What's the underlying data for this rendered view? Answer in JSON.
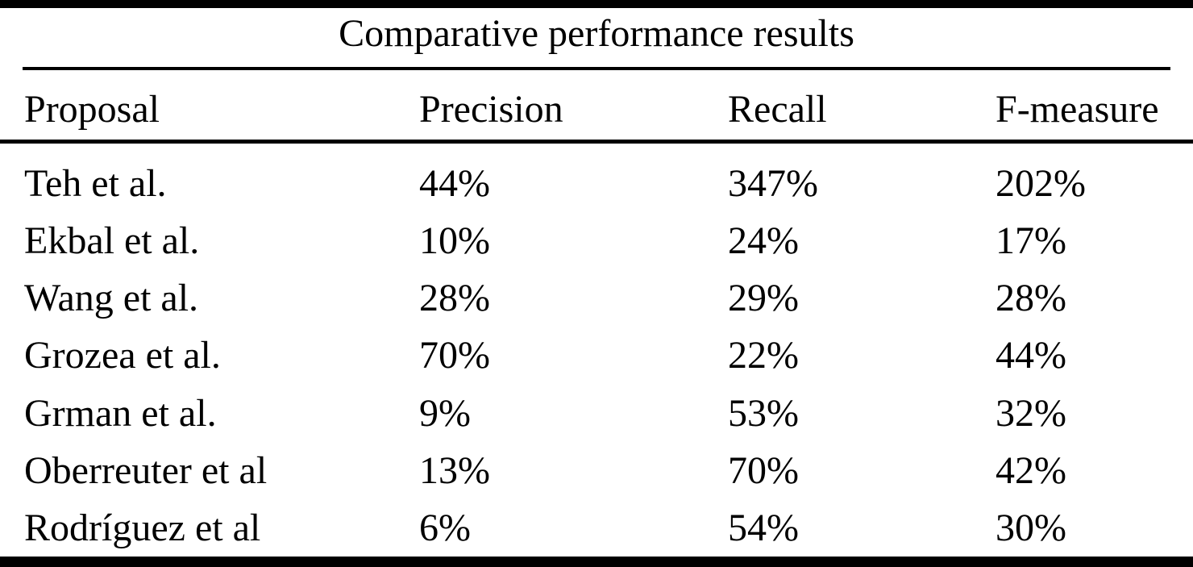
{
  "table": {
    "title": "Comparative performance results",
    "columns": [
      "Proposal",
      "Precision",
      "Recall",
      "F-measure"
    ],
    "rows": [
      {
        "proposal": "Teh et al.",
        "precision": "44%",
        "recall": "347%",
        "f_measure": "202%"
      },
      {
        "proposal": "Ekbal et al.",
        "precision": "10%",
        "recall": "24%",
        "f_measure": "17%"
      },
      {
        "proposal": "Wang et al.",
        "precision": "28%",
        "recall": "29%",
        "f_measure": "28%"
      },
      {
        "proposal": "Grozea et al.",
        "precision": "70%",
        "recall": "22%",
        "f_measure": "44%"
      },
      {
        "proposal": "Grman et al.",
        "precision": "9%",
        "recall": "53%",
        "f_measure": "32%"
      },
      {
        "proposal": "Oberreuter et al",
        "precision": "13%",
        "recall": "70%",
        "f_measure": "42%"
      },
      {
        "proposal": "Rodríguez et al",
        "precision": "6%",
        "recall": "54%",
        "f_measure": "30%"
      }
    ],
    "colors": {
      "text": "#000000",
      "background": "#ffffff",
      "rule": "#000000"
    }
  }
}
